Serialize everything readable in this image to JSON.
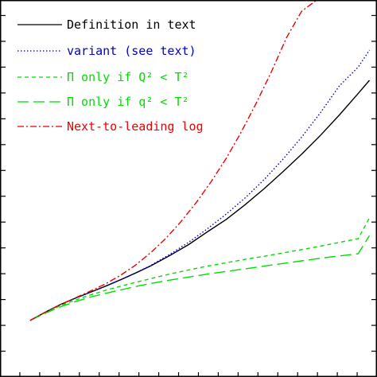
{
  "chart_data": {
    "type": "line",
    "title": "",
    "xlabel": "",
    "ylabel": "",
    "x_range": [
      0,
      1
    ],
    "y_range": [
      0,
      1
    ],
    "grid": false,
    "legend_position": "top-left",
    "series": [
      {
        "name": "Definition in text",
        "color": "#000000",
        "dash": "solid",
        "x": [
          0.08,
          0.12,
          0.16,
          0.2,
          0.24,
          0.28,
          0.32,
          0.36,
          0.4,
          0.45,
          0.5,
          0.55,
          0.6,
          0.65,
          0.7,
          0.75,
          0.8,
          0.85,
          0.9,
          0.95,
          0.98
        ],
        "y": [
          0.15,
          0.172,
          0.192,
          0.209,
          0.225,
          0.241,
          0.258,
          0.276,
          0.295,
          0.322,
          0.351,
          0.385,
          0.418,
          0.457,
          0.499,
          0.544,
          0.591,
          0.641,
          0.695,
          0.752,
          0.787
        ]
      },
      {
        "name": "variant (see text)",
        "color": "#0000cc",
        "dash": "dotted",
        "x": [
          0.08,
          0.12,
          0.16,
          0.2,
          0.24,
          0.28,
          0.32,
          0.36,
          0.4,
          0.45,
          0.5,
          0.55,
          0.6,
          0.65,
          0.7,
          0.75,
          0.8,
          0.85,
          0.9,
          0.95,
          0.98
        ],
        "y": [
          0.15,
          0.172,
          0.192,
          0.209,
          0.225,
          0.241,
          0.258,
          0.276,
          0.296,
          0.325,
          0.357,
          0.393,
          0.432,
          0.475,
          0.523,
          0.577,
          0.636,
          0.701,
          0.772,
          0.822,
          0.867
        ]
      },
      {
        "name": "Π only if Q² < T²",
        "color": "#00dd00",
        "dash": "dashed",
        "x": [
          0.08,
          0.12,
          0.16,
          0.2,
          0.24,
          0.28,
          0.32,
          0.36,
          0.4,
          0.45,
          0.5,
          0.55,
          0.6,
          0.65,
          0.7,
          0.75,
          0.8,
          0.85,
          0.9,
          0.95,
          0.98
        ],
        "y": [
          0.15,
          0.171,
          0.189,
          0.204,
          0.218,
          0.23,
          0.241,
          0.251,
          0.261,
          0.273,
          0.284,
          0.294,
          0.303,
          0.312,
          0.32,
          0.329,
          0.338,
          0.347,
          0.357,
          0.367,
          0.422
        ]
      },
      {
        "name": "Π only if q² < T²",
        "color": "#00dd00",
        "dash": "longdash",
        "x": [
          0.08,
          0.12,
          0.16,
          0.2,
          0.24,
          0.28,
          0.32,
          0.36,
          0.4,
          0.45,
          0.5,
          0.55,
          0.6,
          0.65,
          0.7,
          0.75,
          0.8,
          0.85,
          0.9,
          0.95,
          0.98
        ],
        "y": [
          0.15,
          0.169,
          0.186,
          0.2,
          0.212,
          0.222,
          0.231,
          0.24,
          0.248,
          0.257,
          0.265,
          0.273,
          0.28,
          0.287,
          0.294,
          0.301,
          0.308,
          0.315,
          0.321,
          0.327,
          0.375
        ]
      },
      {
        "name": "Next-to-leading log",
        "color": "#ee0000",
        "dash": "dashdot",
        "x": [
          0.08,
          0.12,
          0.16,
          0.2,
          0.24,
          0.28,
          0.32,
          0.36,
          0.4,
          0.44,
          0.48,
          0.52,
          0.56,
          0.6,
          0.64,
          0.68,
          0.72,
          0.76,
          0.8,
          0.84
        ],
        "y": [
          0.15,
          0.172,
          0.192,
          0.21,
          0.228,
          0.247,
          0.27,
          0.297,
          0.33,
          0.368,
          0.412,
          0.462,
          0.518,
          0.58,
          0.65,
          0.727,
          0.81,
          0.9,
          0.97,
          1.0
        ]
      }
    ]
  }
}
